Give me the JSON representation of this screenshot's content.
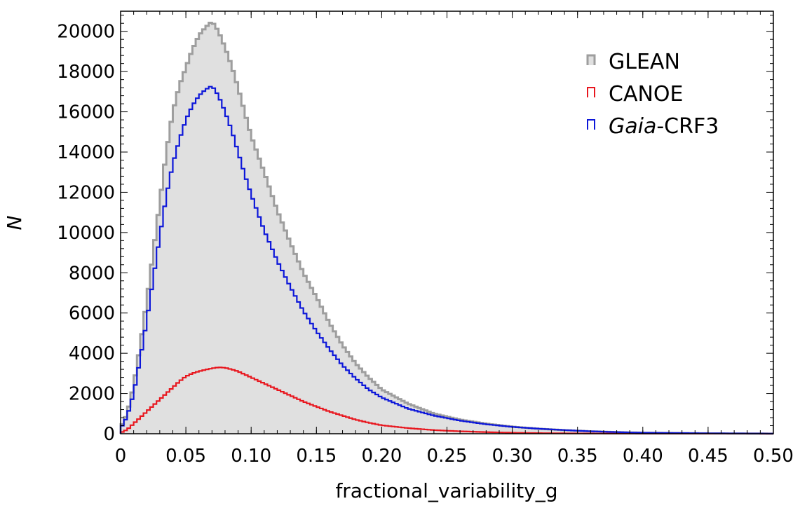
{
  "chart_data": {
    "type": "area",
    "xlabel": "fractional_variability_g",
    "ylabel": "N",
    "xlim": [
      0,
      0.5
    ],
    "ylim": [
      0,
      21000
    ],
    "grid": false,
    "legend_position": "top-right",
    "x_ticks": [
      "0",
      "0.05",
      "0.10",
      "0.15",
      "0.20",
      "0.25",
      "0.30",
      "0.35",
      "0.40",
      "0.45",
      "0.50"
    ],
    "y_ticks": [
      "0",
      "2000",
      "4000",
      "6000",
      "8000",
      "10000",
      "12000",
      "14000",
      "16000",
      "18000",
      "20000"
    ],
    "x": [
      0,
      0.005,
      0.01,
      0.015,
      0.02,
      0.025,
      0.03,
      0.035,
      0.04,
      0.045,
      0.05,
      0.055,
      0.06,
      0.065,
      0.07,
      0.075,
      0.08,
      0.085,
      0.09,
      0.095,
      0.1,
      0.11,
      0.12,
      0.13,
      0.14,
      0.15,
      0.16,
      0.17,
      0.18,
      0.19,
      0.2,
      0.22,
      0.24,
      0.26,
      0.28,
      0.3,
      0.32,
      0.34,
      0.36,
      0.38,
      0.4,
      0.45,
      0.5
    ],
    "series": [
      {
        "name": "GLEAN",
        "color": "#9e9e9e",
        "fill": "#e0e0e0",
        "values": [
          300,
          1000,
          2400,
          4400,
          6600,
          9000,
          11500,
          14000,
          16000,
          17300,
          18200,
          19100,
          19800,
          20200,
          20500,
          20000,
          19200,
          18300,
          17200,
          16000,
          14800,
          13000,
          11100,
          9500,
          8000,
          6800,
          5500,
          4400,
          3500,
          2800,
          2200,
          1500,
          1000,
          700,
          500,
          350,
          250,
          180,
          120,
          80,
          50,
          20,
          5
        ]
      },
      {
        "name": "CANOE",
        "color": "#e8161e",
        "fill": "none",
        "values": [
          50,
          200,
          500,
          800,
          1100,
          1400,
          1700,
          2000,
          2300,
          2600,
          2850,
          3000,
          3100,
          3180,
          3250,
          3300,
          3280,
          3200,
          3100,
          2950,
          2800,
          2500,
          2200,
          1900,
          1600,
          1350,
          1100,
          900,
          700,
          550,
          420,
          280,
          180,
          120,
          80,
          50,
          30,
          20,
          12,
          8,
          5,
          2,
          1
        ]
      },
      {
        "name": "Gaia-CRF3",
        "color": "#0d17d9",
        "fill": "none",
        "values": [
          250,
          850,
          2000,
          3700,
          5600,
          7700,
          9800,
          11800,
          13400,
          14600,
          15600,
          16300,
          16800,
          17100,
          17300,
          16800,
          16000,
          15100,
          14000,
          12900,
          11900,
          10100,
          8600,
          7300,
          6100,
          5100,
          4200,
          3400,
          2750,
          2200,
          1800,
          1250,
          900,
          650,
          470,
          340,
          250,
          180,
          120,
          80,
          50,
          20,
          5
        ]
      }
    ],
    "legend": [
      {
        "name": "GLEAN",
        "prefix": "",
        "italic": "",
        "suffix": "GLEAN"
      },
      {
        "name": "CANOE",
        "prefix": "",
        "italic": "",
        "suffix": "CANOE"
      },
      {
        "name": "Gaia-CRF3",
        "prefix": "",
        "italic": "Gaia",
        "suffix": "-CRF3"
      }
    ]
  }
}
